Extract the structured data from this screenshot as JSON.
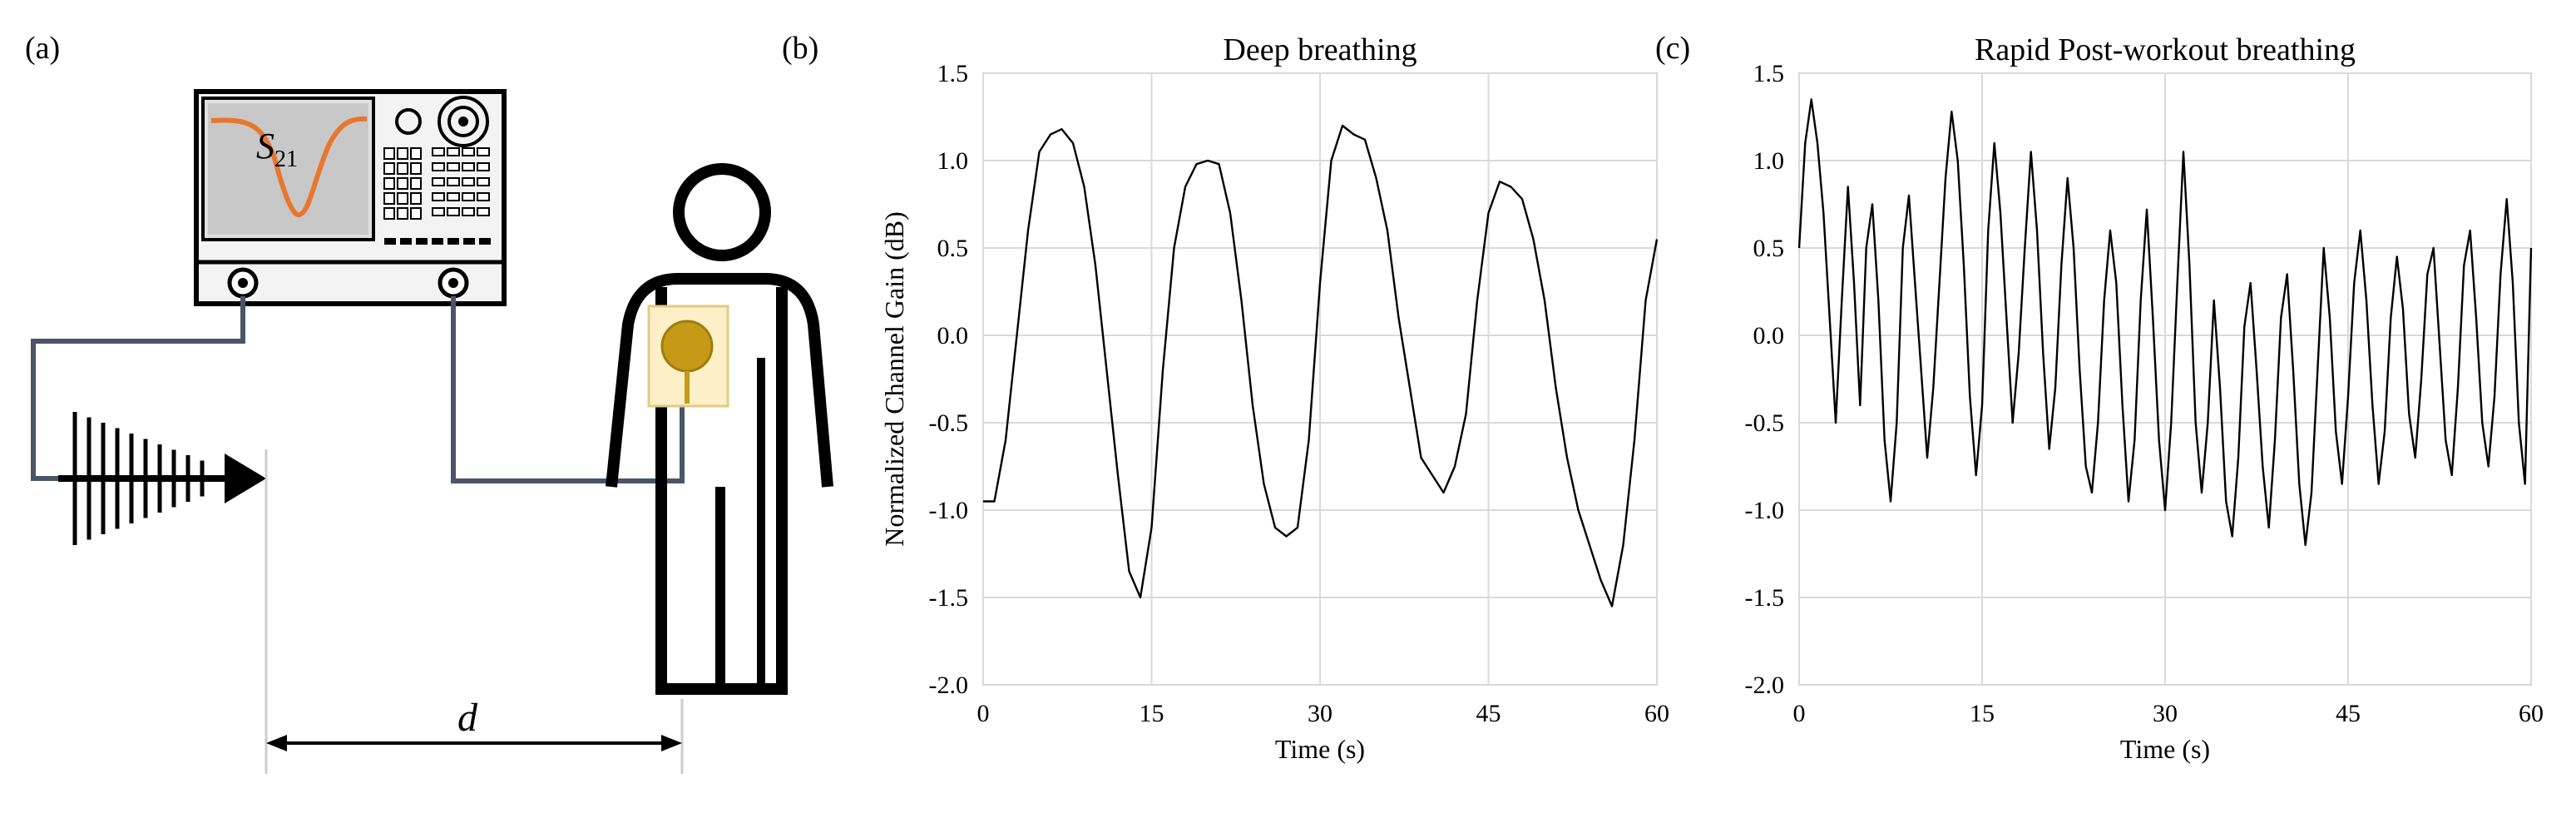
{
  "panels": {
    "a": {
      "label": "(a)",
      "vna_trace_label_base": "S",
      "vna_trace_label_sub": "21",
      "distance_label": "d"
    },
    "b": {
      "label": "(b)"
    },
    "c": {
      "label": "(c)"
    }
  },
  "colors": {
    "trace": "#e8772e",
    "screen": "#c8c8c8",
    "cable": "#4a5568",
    "tag": "#c49a16",
    "tag_bg": "#fdf0c7",
    "tag_border": "#e3c983",
    "line": "#000000",
    "grid": "#d9d9d9"
  },
  "chart_data": [
    {
      "type": "line",
      "panel": "b",
      "title": "Deep breathing",
      "xlabel": "Time (s)",
      "ylabel": "Normalized Channel Gain (dB)",
      "xlim": [
        0,
        60
      ],
      "ylim": [
        -2.0,
        1.5
      ],
      "xticks": [
        0,
        15,
        30,
        45,
        60
      ],
      "xtick_labels": [
        "0",
        "15",
        "30",
        "45",
        "60"
      ],
      "yticks": [
        1.5,
        1.0,
        0.5,
        0.0,
        -0.5,
        -1.0,
        -1.5,
        -2.0
      ],
      "ytick_labels": [
        "1.5",
        "1.0",
        "0.5",
        "0.0",
        "-0.5",
        "-1.0",
        "-1.5",
        "-2.0"
      ],
      "grid": true,
      "x": [
        0,
        1,
        2,
        3,
        4,
        5,
        6,
        7,
        8,
        9,
        10,
        11,
        12,
        13,
        14,
        15,
        16,
        17,
        18,
        19,
        20,
        21,
        22,
        23,
        24,
        25,
        26,
        27,
        28,
        29,
        30,
        31,
        32,
        33,
        34,
        35,
        36,
        37,
        38,
        39,
        40,
        41,
        42,
        43,
        44,
        45,
        46,
        47,
        48,
        49,
        50,
        51,
        52,
        53,
        54,
        55,
        56,
        57,
        58,
        59,
        60
      ],
      "y": [
        -0.95,
        -0.95,
        -0.6,
        0.0,
        0.6,
        1.05,
        1.15,
        1.18,
        1.1,
        0.85,
        0.4,
        -0.2,
        -0.8,
        -1.35,
        -1.5,
        -1.1,
        -0.2,
        0.5,
        0.85,
        0.98,
        1.0,
        0.98,
        0.7,
        0.2,
        -0.4,
        -0.85,
        -1.1,
        -1.15,
        -1.1,
        -0.6,
        0.3,
        1.0,
        1.2,
        1.15,
        1.12,
        0.9,
        0.6,
        0.1,
        -0.3,
        -0.7,
        -0.8,
        -0.9,
        -0.75,
        -0.45,
        0.2,
        0.7,
        0.88,
        0.85,
        0.78,
        0.55,
        0.2,
        -0.3,
        -0.7,
        -1.0,
        -1.2,
        -1.4,
        -1.55,
        -1.2,
        -0.6,
        0.2,
        0.55
      ]
    },
    {
      "type": "line",
      "panel": "c",
      "title": "Rapid Post-workout breathing",
      "xlabel": "Time (s)",
      "ylabel": "",
      "xlim": [
        0,
        60
      ],
      "ylim": [
        -2.0,
        1.5
      ],
      "xticks": [
        0,
        15,
        30,
        45,
        60
      ],
      "xtick_labels": [
        "0",
        "15",
        "30",
        "45",
        "60"
      ],
      "yticks": [
        1.5,
        1.0,
        0.5,
        0.0,
        -0.5,
        -1.0,
        -1.5,
        -2.0
      ],
      "ytick_labels": [
        "1.5",
        "1.0",
        "0.5",
        "0.0",
        "-0.5",
        "-1.0",
        "-1.5",
        "-2.0"
      ],
      "grid": true,
      "x": [
        0,
        0.5,
        1,
        1.5,
        2,
        2.5,
        3,
        3.5,
        4,
        4.5,
        5,
        5.5,
        6,
        6.5,
        7,
        7.5,
        8,
        8.5,
        9,
        9.5,
        10,
        10.5,
        11,
        11.5,
        12,
        12.5,
        13,
        13.5,
        14,
        14.5,
        15,
        15.5,
        16,
        16.5,
        17,
        17.5,
        18,
        18.5,
        19,
        19.5,
        20,
        20.5,
        21,
        21.5,
        22,
        22.5,
        23,
        23.5,
        24,
        24.5,
        25,
        25.5,
        26,
        26.5,
        27,
        27.5,
        28,
        28.5,
        29,
        29.5,
        30,
        30.5,
        31,
        31.5,
        32,
        32.5,
        33,
        33.5,
        34,
        34.5,
        35,
        35.5,
        36,
        36.5,
        37,
        37.5,
        38,
        38.5,
        39,
        39.5,
        40,
        40.5,
        41,
        41.5,
        42,
        42.5,
        43,
        43.5,
        44,
        44.5,
        45,
        45.5,
        46,
        46.5,
        47,
        47.5,
        48,
        48.5,
        49,
        49.5,
        50,
        50.5,
        51,
        51.5,
        52,
        52.5,
        53,
        53.5,
        54,
        54.5,
        55,
        55.5,
        56,
        56.5,
        57,
        57.5,
        58,
        58.5,
        59,
        59.5,
        60
      ],
      "y": [
        0.5,
        1.1,
        1.35,
        1.1,
        0.7,
        0.1,
        -0.5,
        0.2,
        0.85,
        0.3,
        -0.4,
        0.5,
        0.75,
        0.2,
        -0.6,
        -0.95,
        -0.5,
        0.5,
        0.8,
        0.3,
        -0.2,
        -0.7,
        -0.3,
        0.3,
        0.9,
        1.28,
        1.0,
        0.4,
        -0.35,
        -0.8,
        -0.4,
        0.6,
        1.1,
        0.7,
        0.1,
        -0.5,
        -0.1,
        0.5,
        1.05,
        0.6,
        -0.1,
        -0.65,
        -0.3,
        0.4,
        0.9,
        0.5,
        -0.2,
        -0.75,
        -0.9,
        -0.5,
        0.2,
        0.6,
        0.3,
        -0.4,
        -0.95,
        -0.6,
        0.2,
        0.72,
        0.1,
        -0.6,
        -1.0,
        -0.5,
        0.3,
        1.05,
        0.4,
        -0.5,
        -0.9,
        -0.5,
        0.2,
        -0.3,
        -0.95,
        -1.15,
        -0.7,
        0.05,
        0.3,
        -0.2,
        -0.75,
        -1.1,
        -0.6,
        0.1,
        0.35,
        -0.2,
        -0.85,
        -1.2,
        -0.9,
        -0.2,
        0.5,
        0.1,
        -0.55,
        -0.85,
        -0.35,
        0.3,
        0.6,
        0.2,
        -0.4,
        -0.85,
        -0.55,
        0.1,
        0.45,
        0.15,
        -0.45,
        -0.7,
        -0.25,
        0.35,
        0.5,
        -0.05,
        -0.6,
        -0.8,
        -0.3,
        0.4,
        0.6,
        0.1,
        -0.5,
        -0.75,
        -0.35,
        0.35,
        0.78,
        0.3,
        -0.5,
        -0.85,
        0.5
      ]
    }
  ]
}
